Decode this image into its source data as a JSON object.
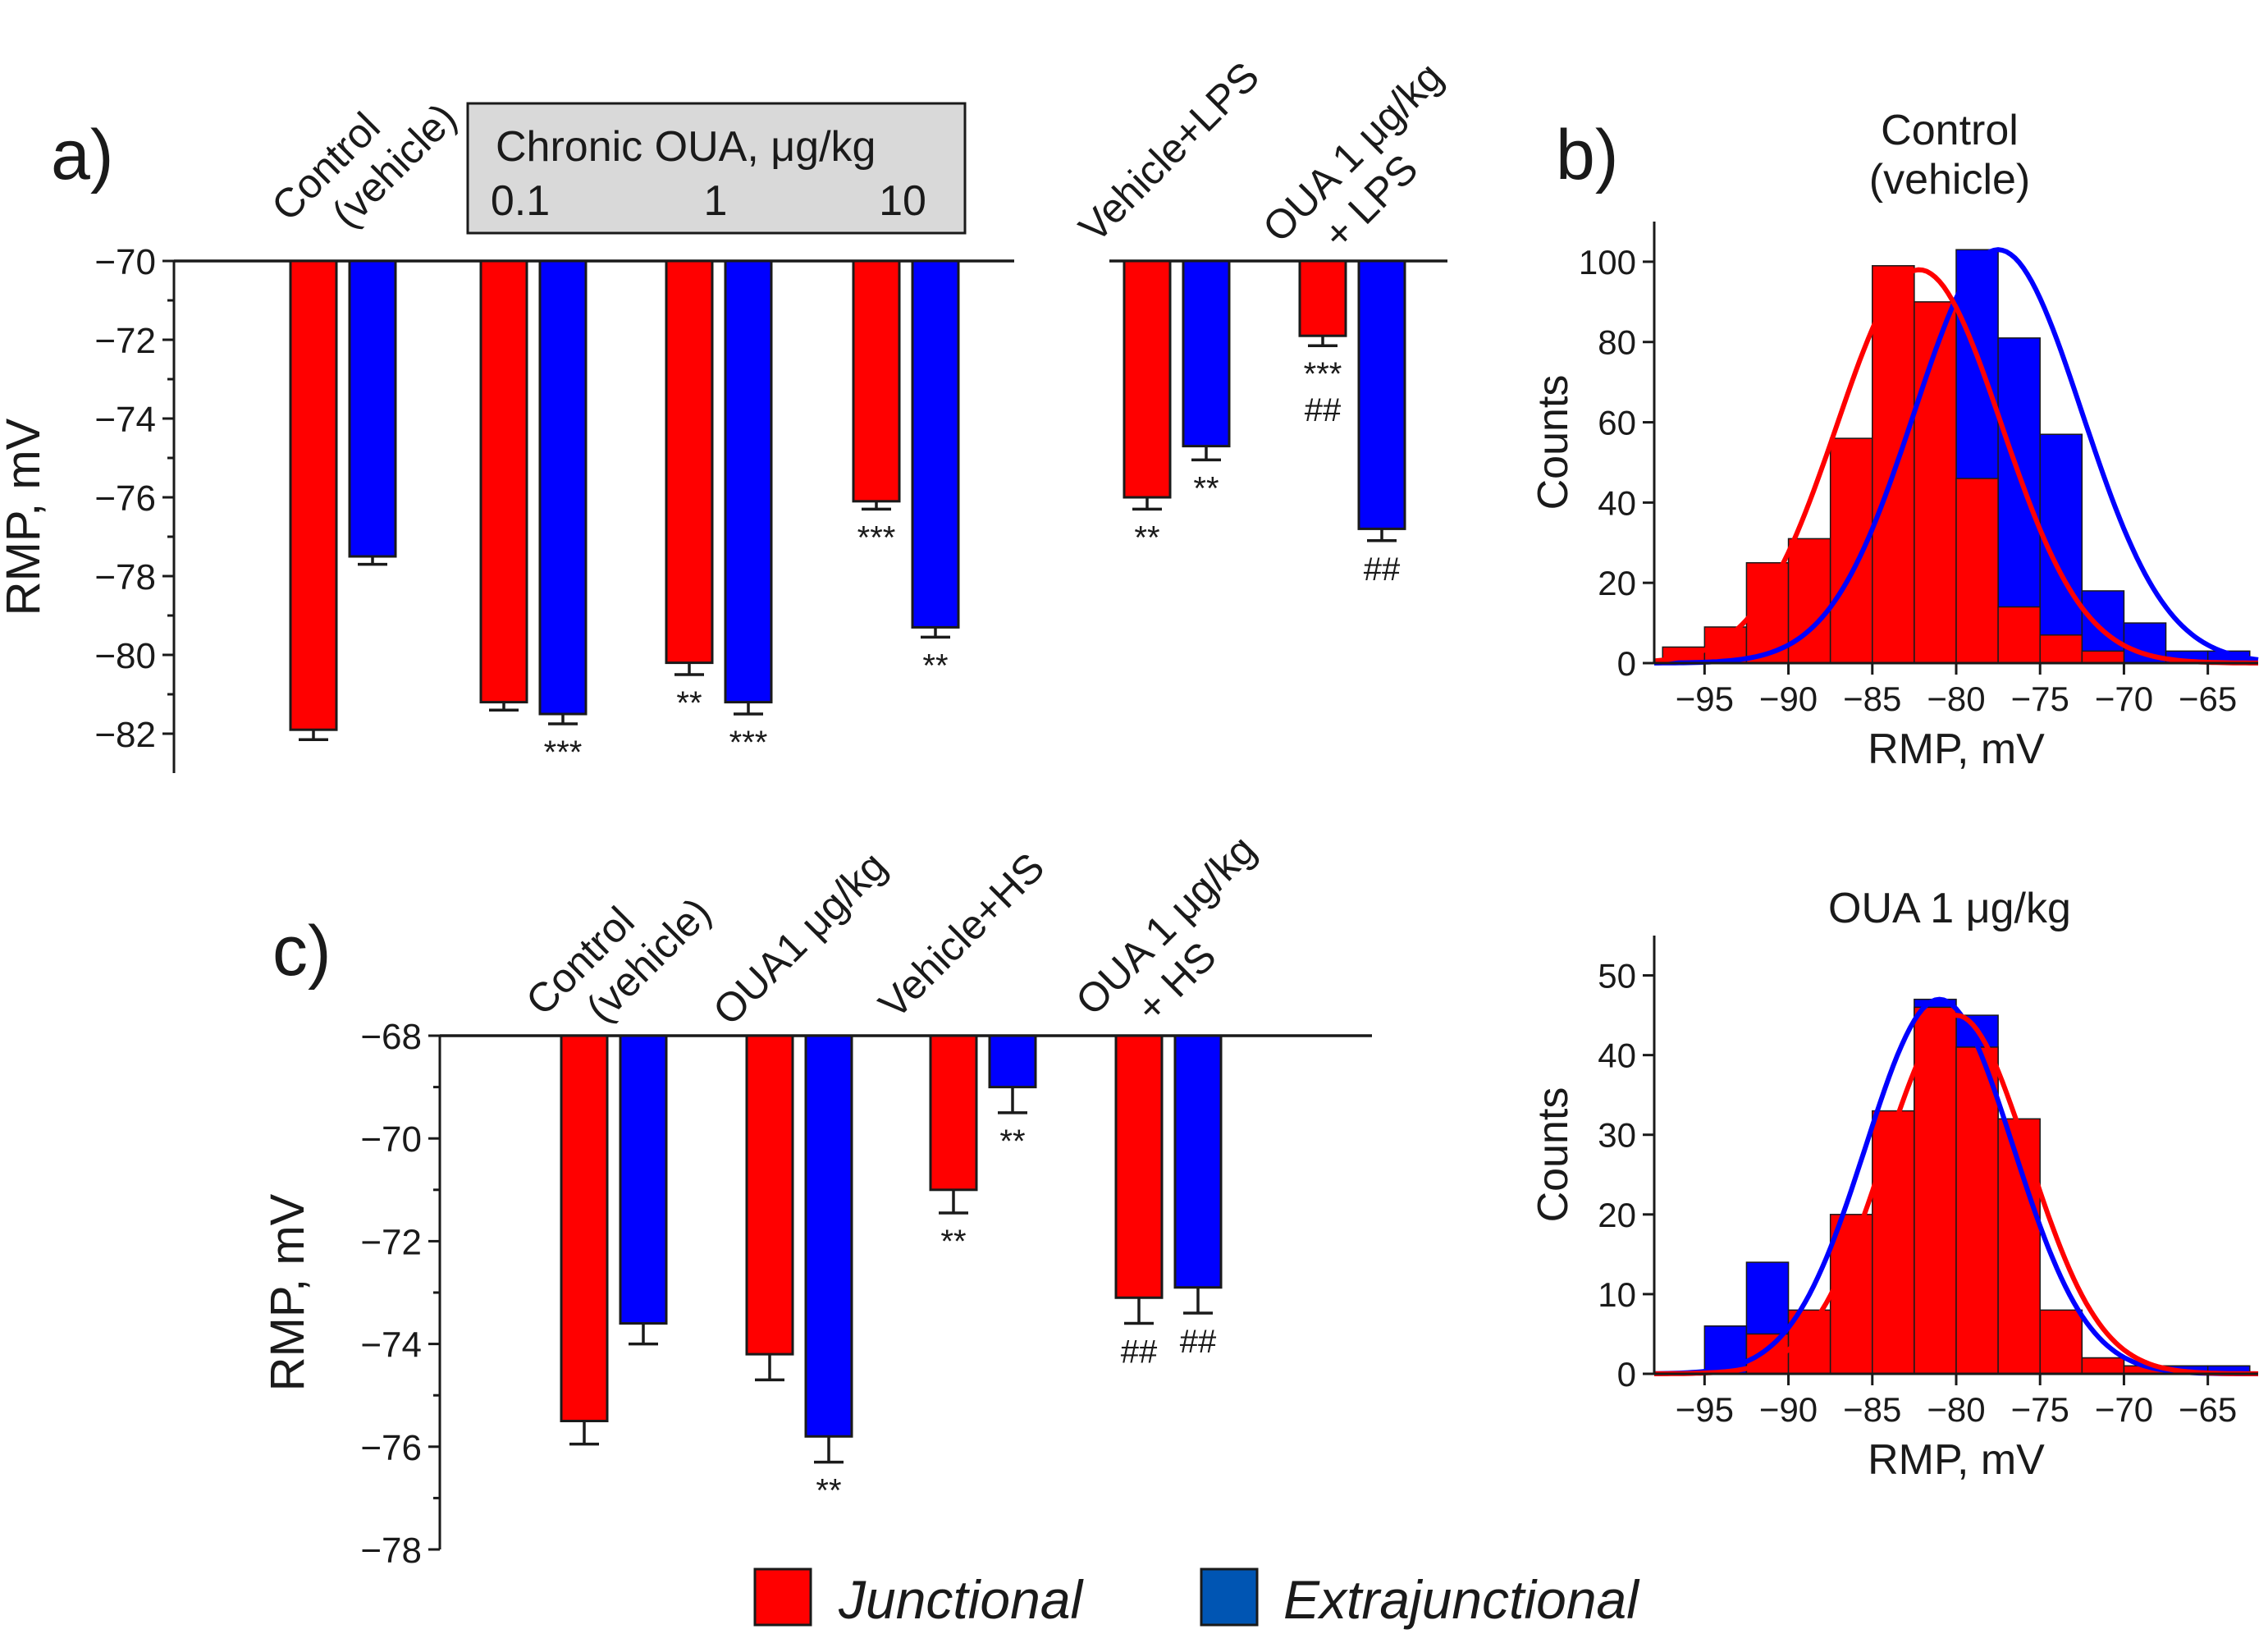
{
  "colors": {
    "junctional": "#ff0000",
    "extrajunctional": "#0000ff",
    "legend_extrajunctional": "#0055b3",
    "gray_box": "#d9d9d9"
  },
  "legend": {
    "junctional": "Junctional",
    "extrajunctional": "Extrajunctional"
  },
  "chart_data": [
    {
      "id": "a",
      "type": "bar",
      "panel_label": "a)",
      "ylabel": "RMP, mV",
      "ylim": [
        -70,
        -83
      ],
      "yticks": [
        -70,
        -72,
        -74,
        -76,
        -78,
        -80,
        -82
      ],
      "box": {
        "title": "Chronic OUA, μg/kg",
        "doses": [
          "0.1",
          "1",
          "10"
        ]
      },
      "groups": [
        {
          "label_lines": [
            "Control",
            "(vehicle)"
          ],
          "junctional": -81.9,
          "junctional_err": 0.25,
          "extrajunctional": -77.5,
          "extrajunctional_err": 0.2,
          "junctional_sig": "",
          "extrajunctional_sig": ""
        },
        {
          "label_lines": [],
          "junctional": -81.2,
          "junctional_err": 0.2,
          "extrajunctional": -81.5,
          "extrajunctional_err": 0.25,
          "junctional_sig": "",
          "extrajunctional_sig": "***"
        },
        {
          "label_lines": [],
          "junctional": -80.2,
          "junctional_err": 0.3,
          "extrajunctional": -81.2,
          "extrajunctional_err": 0.3,
          "junctional_sig": "**",
          "extrajunctional_sig": "***"
        },
        {
          "label_lines": [],
          "junctional": -76.1,
          "junctional_err": 0.2,
          "extrajunctional": -79.3,
          "extrajunctional_err": 0.25,
          "junctional_sig": "***",
          "extrajunctional_sig": "**"
        },
        {
          "label_lines": [
            "Vehicle+LPS"
          ],
          "junctional": -76.0,
          "junctional_err": 0.3,
          "extrajunctional": -74.7,
          "extrajunctional_err": 0.35,
          "junctional_sig": "**",
          "extrajunctional_sig": "**"
        },
        {
          "label_lines": [
            "OUA 1 μg/kg",
            "+ LPS"
          ],
          "junctional": -71.9,
          "junctional_err": 0.25,
          "extrajunctional": -76.8,
          "extrajunctional_err": 0.3,
          "junctional_sig": "***|##",
          "extrajunctional_sig": "##"
        }
      ]
    },
    {
      "id": "c",
      "type": "bar",
      "panel_label": "c)",
      "ylabel": "RMP, mV",
      "ylim": [
        -68,
        -78
      ],
      "yticks": [
        -68,
        -70,
        -72,
        -74,
        -76,
        -78
      ],
      "groups": [
        {
          "label_lines": [
            "Control",
            "(vehicle)"
          ],
          "junctional": -75.5,
          "junctional_err": 0.45,
          "extrajunctional": -73.6,
          "extrajunctional_err": 0.4,
          "junctional_sig": "",
          "extrajunctional_sig": ""
        },
        {
          "label_lines": [
            "OUA1 μg/kg"
          ],
          "junctional": -74.2,
          "junctional_err": 0.5,
          "extrajunctional": -75.8,
          "extrajunctional_err": 0.5,
          "junctional_sig": "",
          "extrajunctional_sig": "**"
        },
        {
          "label_lines": [
            "Vehicle+HS"
          ],
          "junctional": -71.0,
          "junctional_err": 0.45,
          "extrajunctional": -69.0,
          "extrajunctional_err": 0.5,
          "junctional_sig": "**",
          "extrajunctional_sig": "**"
        },
        {
          "label_lines": [
            "OUA 1 μg/kg",
            "+ HS"
          ],
          "junctional": -73.1,
          "junctional_err": 0.5,
          "extrajunctional": -72.9,
          "extrajunctional_err": 0.5,
          "junctional_sig": "##",
          "extrajunctional_sig": "##"
        }
      ]
    },
    {
      "id": "b_control",
      "type": "histogram",
      "panel_label": "b)",
      "title": "Control\n(vehicle)",
      "xlabel": "RMP, mV",
      "ylabel": "Counts",
      "xlim": [
        -98,
        -62
      ],
      "ylim": [
        0,
        110
      ],
      "xticks": [
        -95,
        -90,
        -85,
        -80,
        -75,
        -70,
        -65
      ],
      "yticks": [
        0,
        20,
        40,
        60,
        80,
        100
      ],
      "bin_start": -97.5,
      "bin_width": 2.5,
      "junctional_counts": [
        4,
        9,
        25,
        31,
        56,
        99,
        90,
        46,
        14,
        7,
        3,
        0,
        0,
        0
      ],
      "extrajunctional_counts": [
        0,
        0,
        0,
        0,
        0,
        0,
        0,
        103,
        81,
        57,
        18,
        10,
        3,
        3
      ],
      "junctional_fit": {
        "mean": -82.2,
        "sd": 4.9,
        "peak": 98
      },
      "extrajunctional_fit": {
        "mean": -77.5,
        "sd": 5.0,
        "peak": 103
      }
    },
    {
      "id": "b_oua",
      "type": "histogram",
      "title": "OUA 1 μg/kg",
      "xlabel": "RMP, mV",
      "ylabel": "Counts",
      "xlim": [
        -98,
        -62
      ],
      "ylim": [
        0,
        55
      ],
      "xticks": [
        -95,
        -90,
        -85,
        -80,
        -75,
        -70,
        -65
      ],
      "yticks": [
        0,
        10,
        20,
        30,
        40,
        50
      ],
      "bin_start": -97.5,
      "bin_width": 2.5,
      "junctional_counts": [
        0,
        0,
        5,
        8,
        20,
        33,
        46,
        41,
        32,
        8,
        2,
        1,
        0,
        0
      ],
      "extrajunctional_counts": [
        0,
        6,
        14,
        0,
        0,
        0,
        47,
        45,
        0,
        0,
        2,
        1,
        1,
        1
      ],
      "junctional_fit": {
        "mean": -80.0,
        "sd": 4.3,
        "peak": 45
      },
      "extrajunctional_fit": {
        "mean": -81.0,
        "sd": 4.4,
        "peak": 47
      }
    }
  ]
}
